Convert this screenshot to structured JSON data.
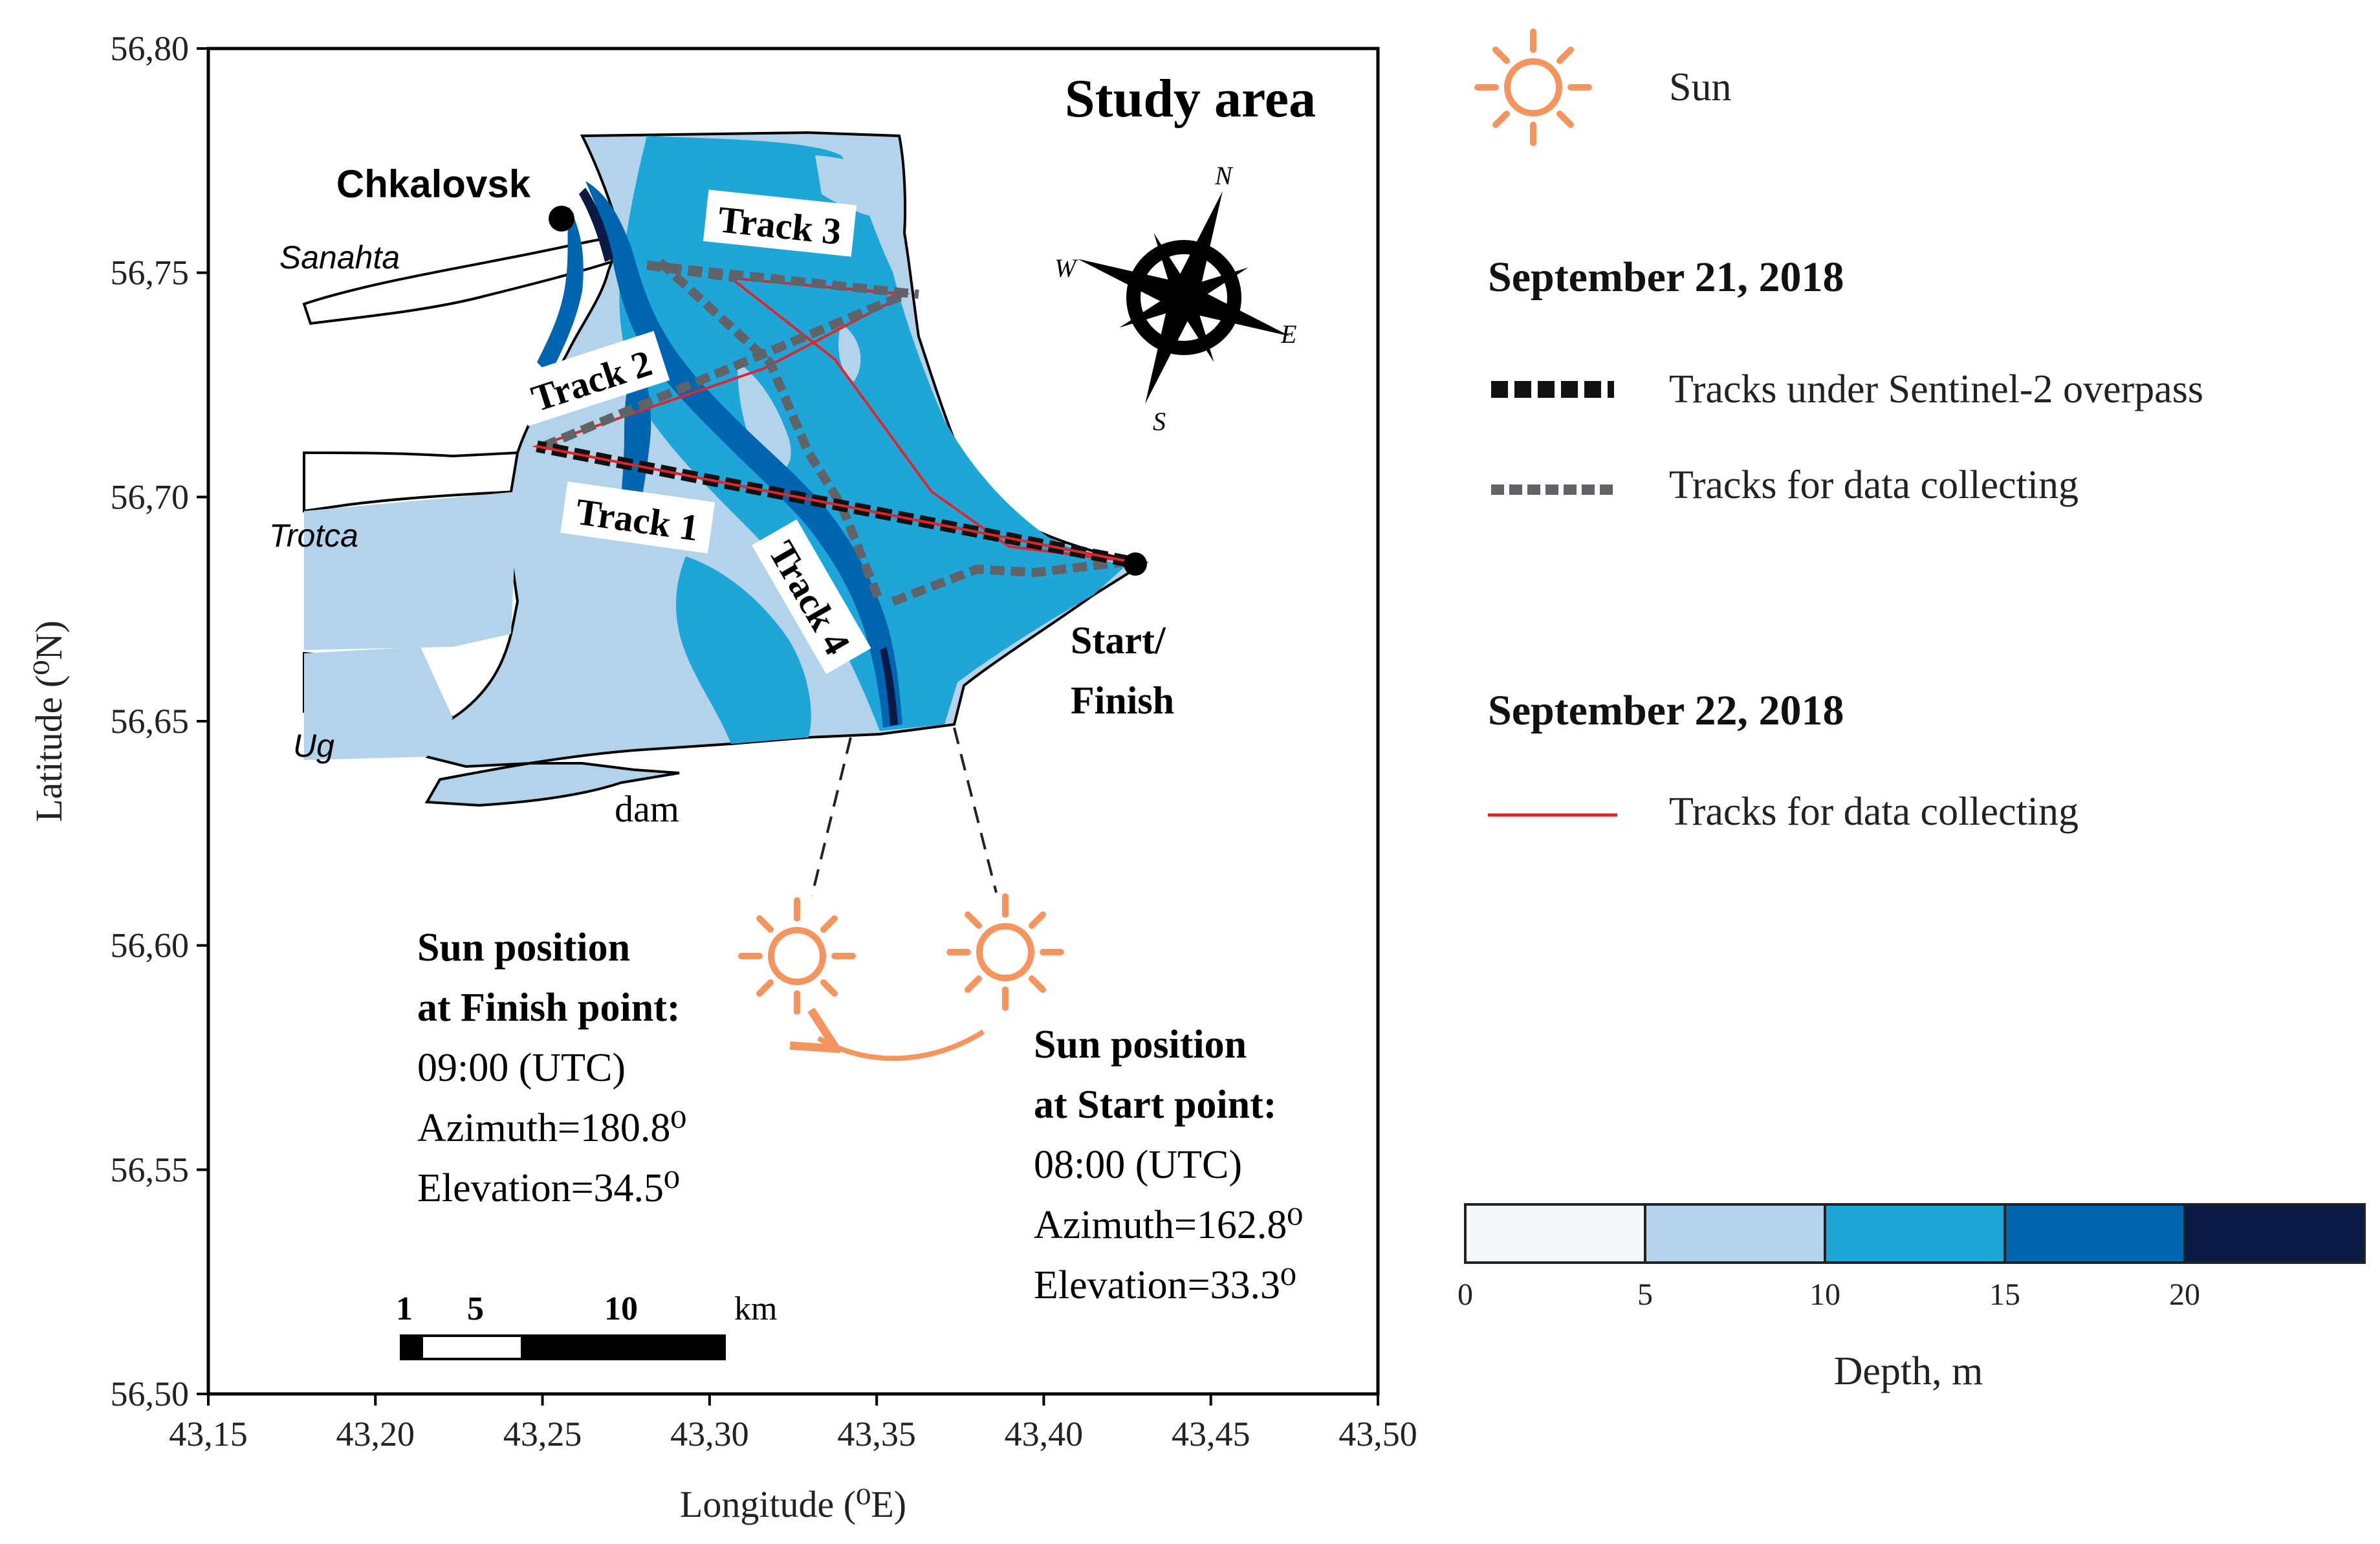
{
  "map": {
    "title": "Study area",
    "xlabel": "Longitude (⁰E)",
    "ylabel": "Latitude (⁰N)",
    "x_ticks": [
      "43,15",
      "43,20",
      "43,25",
      "43,30",
      "43,35",
      "43,40",
      "43,45",
      "43,50"
    ],
    "y_ticks": [
      "56,80",
      "56,75",
      "56,70",
      "56,65",
      "56,60",
      "56,55",
      "56,50"
    ],
    "x_range": [
      43.15,
      43.5
    ],
    "y_range": [
      56.5,
      56.8
    ],
    "places": {
      "chkalovsk": "Chkalovsk",
      "sanahta": "Sanahta",
      "trotca": "Trotca",
      "ug": "Ug",
      "dam": "dam",
      "start_line1": "Start/",
      "start_line2": "Finish"
    },
    "tracks": {
      "t1": "Track 1",
      "t2": "Track 2",
      "t3": "Track 3",
      "t4": "Track 4"
    },
    "compass": {
      "n": "N",
      "s": "S",
      "e": "E",
      "w": "W"
    },
    "scale_bar": {
      "l1": "1",
      "l5": "5",
      "l10": "10",
      "unit": "km"
    }
  },
  "sun_finish": {
    "heading1": "Sun position",
    "heading2": "at Finish point:",
    "time": "09:00 (UTC)",
    "azimuth": "Azimuth=180.8⁰",
    "elevation": "Elevation=34.5⁰"
  },
  "sun_start": {
    "heading1": "Sun position",
    "heading2": "at Start point:",
    "time": "08:00 (UTC)",
    "azimuth": "Azimuth=162.8⁰",
    "elevation": "Elevation=33.3⁰"
  },
  "legend": {
    "sun": "Sun",
    "date1": "September 21, 2018",
    "sentinel": "Tracks under Sentinel-2 overpass",
    "collecting1": "Tracks for data collecting",
    "date2": "September 22, 2018",
    "collecting2": "Tracks for data collecting"
  },
  "colorbar": {
    "title": "Depth, m",
    "ticks": [
      "0",
      "5",
      "10",
      "15",
      "20"
    ],
    "colors": [
      "#f4f9fe",
      "#b3d3ea",
      "#1ea6d8",
      "#0065b0",
      "#0a1a44"
    ]
  },
  "colors": {
    "sun": "#f4955f",
    "red_track": "#e0262a",
    "gray_track": "#606368"
  }
}
